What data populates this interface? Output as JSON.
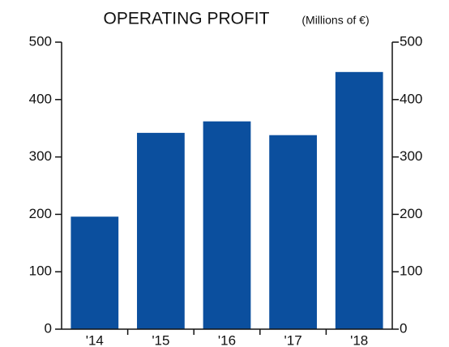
{
  "chart_data": {
    "type": "bar",
    "title": "OPERATING PROFIT",
    "subtitle": "(Millions of €)",
    "categories": [
      "'14",
      "'15",
      "'16",
      "'17",
      "'18"
    ],
    "values": [
      196,
      342,
      362,
      338,
      448
    ],
    "color": "#0b4f9e",
    "ylim": [
      0,
      500
    ],
    "yticks": [
      0,
      100,
      200,
      300,
      400,
      500
    ],
    "y2lim": [
      0,
      500
    ],
    "y2ticks": [
      0,
      100,
      200,
      300,
      400,
      500
    ],
    "grid": false
  }
}
